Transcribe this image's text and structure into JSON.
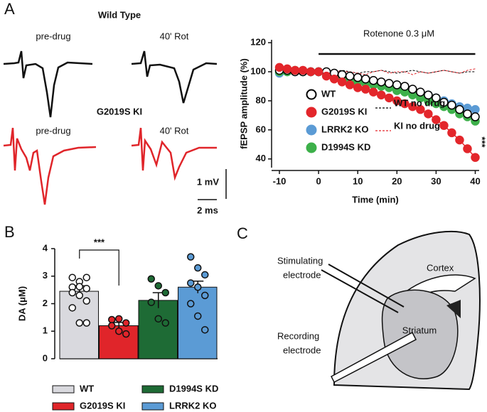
{
  "panels": {
    "a": "A",
    "b": "B",
    "c": "C"
  },
  "traces": {
    "wt_title": "Wild Type",
    "wt_pre": "pre-drug",
    "wt_post": "40' Rot",
    "ki_title": "G2019S KI",
    "ki_pre": "pre-drug",
    "ki_post": "40' Rot",
    "scale_v": "1 mV",
    "scale_t": "2 ms"
  },
  "diagram": {
    "stimulating": [
      "Stimulating",
      "electrode"
    ],
    "recording": [
      "Recording",
      "electrode"
    ],
    "cortex": "Cortex",
    "striatum": "Striatum"
  },
  "chart_data": [
    {
      "type": "line",
      "annotation": "Rotenone 0.3 μM",
      "x_label": "Time (min)",
      "y_label": "fEPSP amplitude (%)",
      "significance": "***",
      "x": [
        -10,
        -8,
        -6,
        -4,
        -2,
        0,
        2,
        4,
        6,
        8,
        10,
        12,
        14,
        16,
        18,
        20,
        22,
        24,
        26,
        28,
        30,
        32,
        34,
        36,
        38,
        40
      ],
      "xlim": [
        -12,
        41
      ],
      "xticks": [
        -10,
        0,
        10,
        20,
        30,
        40
      ],
      "ylim": [
        34,
        122
      ],
      "yticks": [
        40,
        60,
        80,
        100,
        120
      ],
      "series": [
        {
          "name": "WT",
          "color": "#000000",
          "fill": "#ffffff",
          "marker": true,
          "dash": false,
          "values": [
            101,
            101,
            100,
            100,
            100,
            100,
            100,
            99,
            98,
            97,
            96,
            95,
            94,
            93,
            92,
            91,
            90,
            88,
            86,
            84,
            82,
            79,
            77,
            74,
            71,
            69
          ]
        },
        {
          "name": "G2019S KI",
          "color": "#e3262b",
          "fill": "#e3262b",
          "marker": true,
          "dash": false,
          "values": [
            103,
            102,
            101,
            101,
            100,
            100,
            97,
            95,
            93,
            91,
            89,
            88,
            86,
            84,
            82,
            80,
            78,
            76,
            74,
            71,
            67,
            63,
            58,
            53,
            47,
            41
          ]
        },
        {
          "name": "LRRK2 KO",
          "color": "#5b9bd5",
          "fill": "#5b9bd5",
          "marker": true,
          "dash": false,
          "values": [
            99,
            100,
            100,
            100,
            100,
            100,
            99,
            98,
            97,
            96,
            95,
            94,
            93,
            92,
            91,
            90,
            88,
            87,
            85,
            84,
            82,
            80,
            78,
            76,
            75,
            74
          ]
        },
        {
          "name": "D1994S KD",
          "color": "#3db04a",
          "fill": "#3db04a",
          "marker": true,
          "dash": false,
          "values": [
            100,
            100,
            101,
            100,
            100,
            100,
            99,
            97,
            96,
            95,
            93,
            92,
            91,
            90,
            89,
            87,
            86,
            84,
            82,
            80,
            78,
            76,
            74,
            71,
            69,
            66
          ]
        },
        {
          "name": "WT no drug",
          "color": "#000000",
          "fill": "none",
          "marker": false,
          "dash": true,
          "values": [
            100,
            101,
            101,
            100,
            100,
            101,
            101,
            100,
            101,
            100,
            99,
            100,
            100,
            101,
            100,
            99,
            100,
            101,
            100,
            99,
            100,
            101,
            100,
            99,
            100,
            100
          ]
        },
        {
          "name": "KI no drug",
          "color": "#e3262b",
          "fill": "none",
          "marker": false,
          "dash": true,
          "values": [
            101,
            100,
            101,
            100,
            101,
            100,
            99,
            101,
            100,
            100,
            99,
            98,
            100,
            101,
            99,
            100,
            100,
            98,
            100,
            99,
            100,
            101,
            100,
            99,
            101,
            102
          ]
        }
      ]
    },
    {
      "type": "bar",
      "y_label": "DA (μM)",
      "significance": "***",
      "categories": [
        "WT",
        "G2019S KI",
        "D1994S KD",
        "LRRK2 KO"
      ],
      "values": [
        2.45,
        1.2,
        2.12,
        2.6
      ],
      "errors": [
        0.2,
        0.12,
        0.28,
        0.22
      ],
      "colors": [
        "#d9d9de",
        "#e0252a",
        "#1e6b35",
        "#5b9bd5"
      ],
      "point_colors": [
        "#ffffff",
        "#e0252a",
        "#1e6b35",
        "#5b9bd5"
      ],
      "points": [
        [
          2.95,
          2.8,
          2.95,
          2.6,
          2.62,
          2.55,
          2.4,
          2.3,
          2.1,
          1.85,
          1.3,
          1.3
        ],
        [
          1.42,
          1.45,
          1.3,
          1.2,
          1.0,
          0.9
        ],
        [
          2.9,
          2.65,
          2.4,
          2.05,
          1.45,
          1.3
        ],
        [
          3.7,
          3.3,
          3.05,
          2.75,
          2.6,
          2.3,
          2.0,
          1.55,
          1.05
        ]
      ],
      "ylim": [
        0,
        4
      ],
      "yticks": [
        0,
        1,
        2,
        3,
        4
      ]
    }
  ]
}
